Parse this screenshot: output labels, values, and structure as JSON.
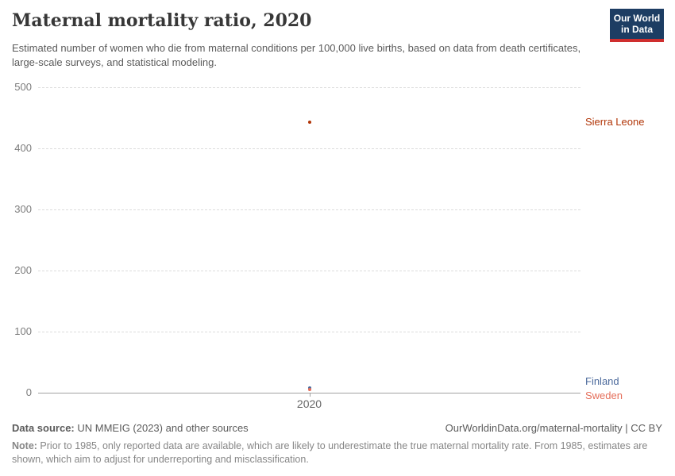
{
  "header": {
    "title": "Maternal mortality ratio, 2020",
    "subtitle": "Estimated number of women who die from maternal conditions per 100,000 live births, based on data from death certificates, large-scale surveys, and statistical modeling.",
    "logo": {
      "line1": "Our World",
      "line2": "in Data"
    },
    "logo_colors": {
      "background": "#1d3d63",
      "stripe": "#cf2e2e",
      "text": "#ffffff"
    }
  },
  "chart_data": {
    "type": "scatter",
    "x": [
      2020
    ],
    "x_ticks": [
      "2020"
    ],
    "y_ticks": [
      0,
      100,
      200,
      300,
      400,
      500
    ],
    "ylim": [
      0,
      500
    ],
    "grid": "horizontal-dashed",
    "legend_position": "labels-right-of-plot",
    "series": [
      {
        "name": "Sierra Leone",
        "values": [
          443
        ],
        "color": "#b13507"
      },
      {
        "name": "Finland",
        "values": [
          8
        ],
        "color": "#4c6a9c"
      },
      {
        "name": "Sweden",
        "values": [
          5
        ],
        "color": "#e56e5a"
      }
    ]
  },
  "footer": {
    "data_source_label": "Data source:",
    "data_source_text": " UN MMEIG (2023) and other sources",
    "attribution": "OurWorldinData.org/maternal-mortality | CC BY",
    "note_label": "Note:",
    "note_text": " Prior to 1985, only reported data are available, which are likely to underestimate the true maternal mortality rate. From 1985, estimates are shown, which aim to adjust for underreporting and misclassification."
  }
}
